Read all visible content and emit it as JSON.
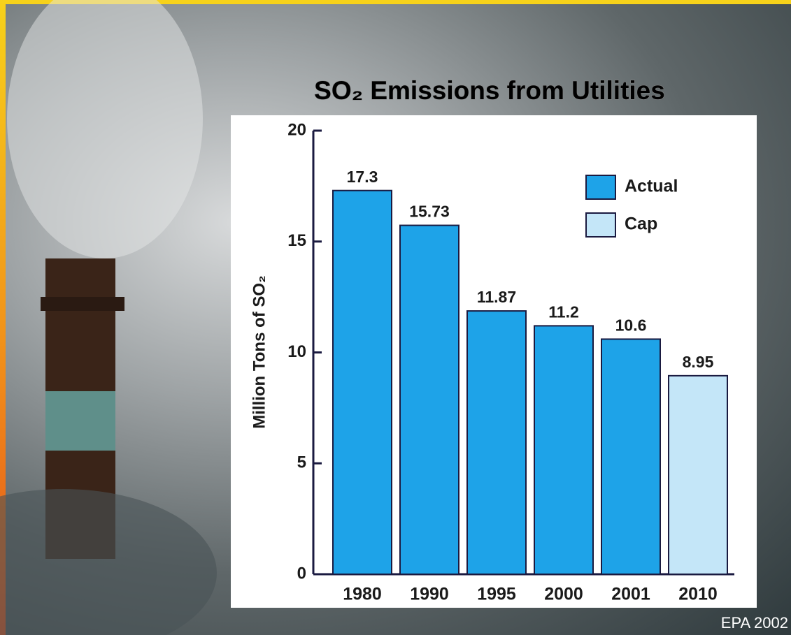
{
  "chart_data": {
    "type": "bar",
    "title": "SO₂ Emissions from Utilities",
    "y_label": "Million Tons of SO₂",
    "source": "EPA 2002",
    "categories": [
      "1980",
      "1990",
      "1995",
      "2000",
      "2001",
      "2010"
    ],
    "series": [
      {
        "name": "Actual",
        "color": "#1ea3e8",
        "values": [
          17.3,
          15.73,
          11.87,
          11.2,
          10.6,
          null
        ]
      },
      {
        "name": "Cap",
        "color": "#c4e6f8",
        "values": [
          null,
          null,
          null,
          null,
          null,
          8.95
        ]
      }
    ],
    "ylim": [
      0,
      20
    ],
    "yticks": [
      0,
      5,
      10,
      15,
      20
    ]
  }
}
